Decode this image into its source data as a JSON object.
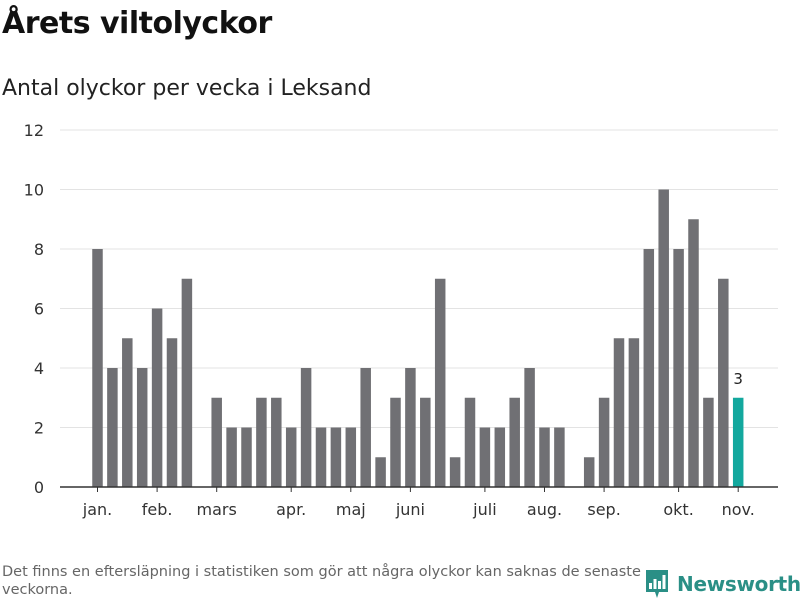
{
  "header": {
    "title": "Årets viltolyckor",
    "subtitle": "Antal olyckor per vecka i Leksand"
  },
  "footer": {
    "note": "Det finns en eftersläpning i statistiken som gör att några olyckor kan saknas de senaste veckorna.",
    "brand": "Newsworthy"
  },
  "colors": {
    "bar": "#707074",
    "highlight": "#13a89e",
    "brand": "#2a8f86"
  },
  "chart_data": {
    "type": "bar",
    "title": "Årets viltolyckor",
    "subtitle": "Antal olyckor per vecka i Leksand",
    "xlabel": "",
    "ylabel": "",
    "ylim": [
      0,
      12
    ],
    "yticks": [
      0,
      2,
      4,
      6,
      8,
      10,
      12
    ],
    "grid": true,
    "x": [
      1,
      2,
      3,
      4,
      5,
      6,
      7,
      8,
      9,
      10,
      11,
      12,
      13,
      14,
      15,
      16,
      17,
      18,
      19,
      20,
      21,
      22,
      23,
      24,
      25,
      26,
      27,
      28,
      29,
      30,
      31,
      32,
      33,
      34,
      35,
      36,
      37,
      38,
      39,
      40,
      41,
      42,
      43,
      44
    ],
    "values": [
      8,
      4,
      5,
      4,
      6,
      5,
      7,
      0,
      3,
      2,
      2,
      3,
      3,
      2,
      4,
      2,
      2,
      2,
      4,
      1,
      3,
      4,
      3,
      7,
      1,
      3,
      2,
      2,
      3,
      4,
      2,
      2,
      0,
      1,
      3,
      5,
      5,
      8,
      10,
      8,
      9,
      3,
      7,
      3
    ],
    "month_labels": [
      {
        "label": "jan.",
        "week": 1
      },
      {
        "label": "feb.",
        "week": 5
      },
      {
        "label": "mars",
        "week": 9
      },
      {
        "label": "apr.",
        "week": 14
      },
      {
        "label": "maj",
        "week": 18
      },
      {
        "label": "juni",
        "week": 22
      },
      {
        "label": "juli",
        "week": 27
      },
      {
        "label": "aug.",
        "week": 31
      },
      {
        "label": "sep.",
        "week": 35
      },
      {
        "label": "okt.",
        "week": 40
      },
      {
        "label": "nov.",
        "week": 44
      }
    ],
    "highlight_index": 43,
    "highlight_label": "3"
  }
}
